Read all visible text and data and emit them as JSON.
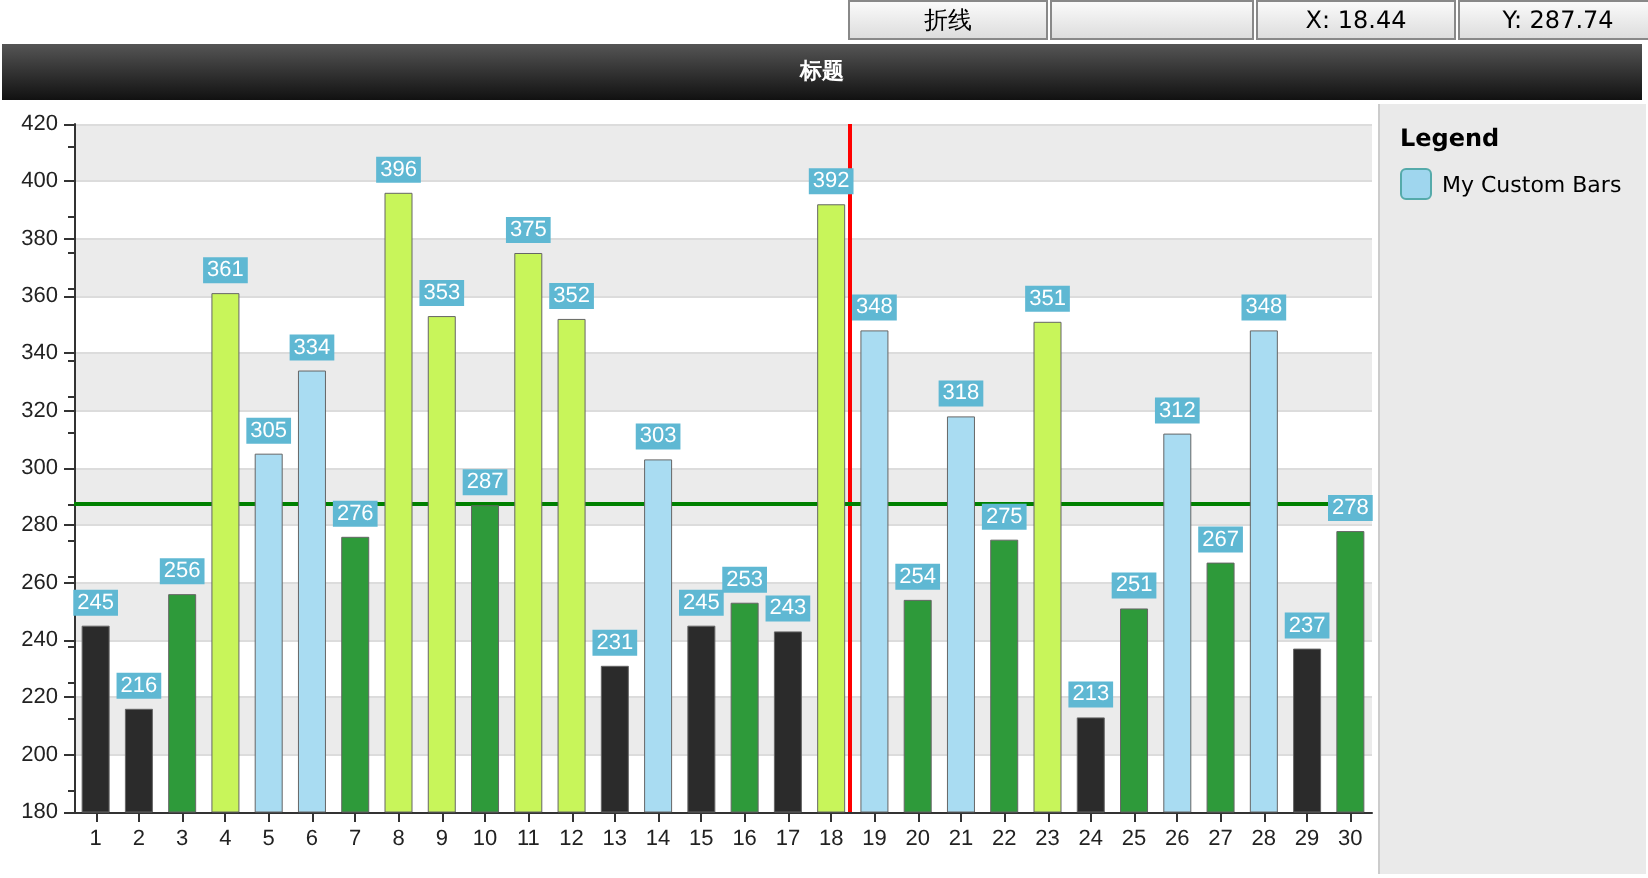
{
  "chart_data": {
    "type": "bar",
    "title": "标题",
    "legend_title": "Legend",
    "legend": "right",
    "x": [
      1,
      2,
      3,
      4,
      5,
      6,
      7,
      8,
      9,
      10,
      11,
      12,
      13,
      14,
      15,
      16,
      17,
      18,
      19,
      20,
      21,
      22,
      23,
      24,
      25,
      26,
      27,
      28,
      29,
      30
    ],
    "xlim": [
      0.5,
      30.5
    ],
    "xticks": [
      1,
      2,
      3,
      4,
      5,
      6,
      7,
      8,
      9,
      10,
      11,
      12,
      13,
      14,
      15,
      16,
      17,
      18,
      19,
      20,
      21,
      22,
      23,
      24,
      25,
      26,
      27,
      28,
      29,
      30
    ],
    "ylim": [
      180,
      420
    ],
    "yticks": [
      180,
      200,
      220,
      240,
      260,
      280,
      300,
      320,
      340,
      360,
      380,
      400,
      420
    ],
    "series": [
      {
        "name": "My Custom Bars",
        "color": "#9fd6ee",
        "values": [
          245,
          216,
          256,
          361,
          305,
          334,
          276,
          396,
          353,
          287,
          375,
          352,
          231,
          303,
          245,
          253,
          243,
          392,
          348,
          254,
          318,
          275,
          351,
          213,
          251,
          312,
          267,
          348,
          237,
          278
        ],
        "colors": [
          "#2b2b2b",
          "#2b2b2b",
          "#2e9a3a",
          "#c8f55a",
          "#a9dcf2",
          "#a9dcf2",
          "#2e9a3a",
          "#c8f55a",
          "#c8f55a",
          "#2e9a3a",
          "#c8f55a",
          "#c8f55a",
          "#2b2b2b",
          "#a9dcf2",
          "#2b2b2b",
          "#2e9a3a",
          "#2b2b2b",
          "#c8f55a",
          "#a9dcf2",
          "#2e9a3a",
          "#a9dcf2",
          "#2e9a3a",
          "#c8f55a",
          "#2b2b2b",
          "#2e9a3a",
          "#a9dcf2",
          "#2e9a3a",
          "#a9dcf2",
          "#2b2b2b",
          "#2e9a3a"
        ]
      }
    ],
    "data_labels": true,
    "grid": "y",
    "ref_lines": [
      {
        "axis": "x",
        "value": 18.44,
        "color": "#ff0000"
      },
      {
        "axis": "y",
        "value": 287.74,
        "color": "#008000"
      }
    ],
    "annotations": [
      "折线",
      "X: 18.44",
      "Y: 287.74"
    ]
  }
}
